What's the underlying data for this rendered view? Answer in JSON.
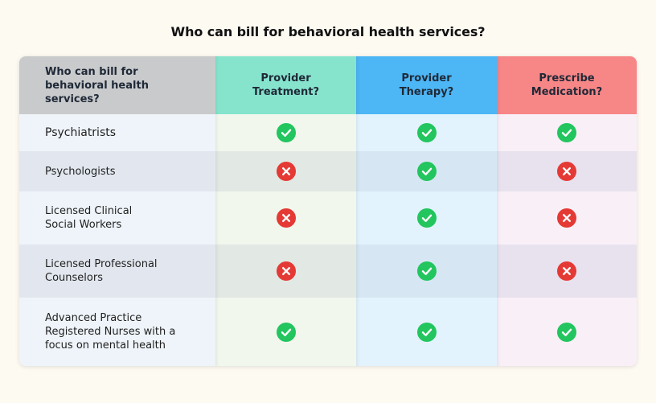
{
  "title": "Who can bill for behavioral health services?",
  "header": {
    "first": "Who can bill for behavioral health services?",
    "col1": "Provider Treatment?",
    "col2": "Provider Therapy?",
    "col3": "Prescribe Medication?"
  },
  "colors": {
    "check": "#22c55e",
    "cross": "#e53935",
    "col1_header": "#86e4cd",
    "col2_header": "#4db6f5",
    "col3_header": "#f78687"
  },
  "rows": [
    {
      "label": "Psychiatrists",
      "treatment": "check",
      "therapy": "check",
      "medication": "check"
    },
    {
      "label": "Psychologists",
      "treatment": "cross",
      "therapy": "check",
      "medication": "cross"
    },
    {
      "label": "Licensed Clinical Social Workers",
      "treatment": "cross",
      "therapy": "check",
      "medication": "cross"
    },
    {
      "label": "Licensed Professional Counselors",
      "treatment": "cross",
      "therapy": "check",
      "medication": "cross"
    },
    {
      "label": "Advanced Practice Registered Nurses with a focus on mental health",
      "treatment": "check",
      "therapy": "check",
      "medication": "check"
    }
  ]
}
